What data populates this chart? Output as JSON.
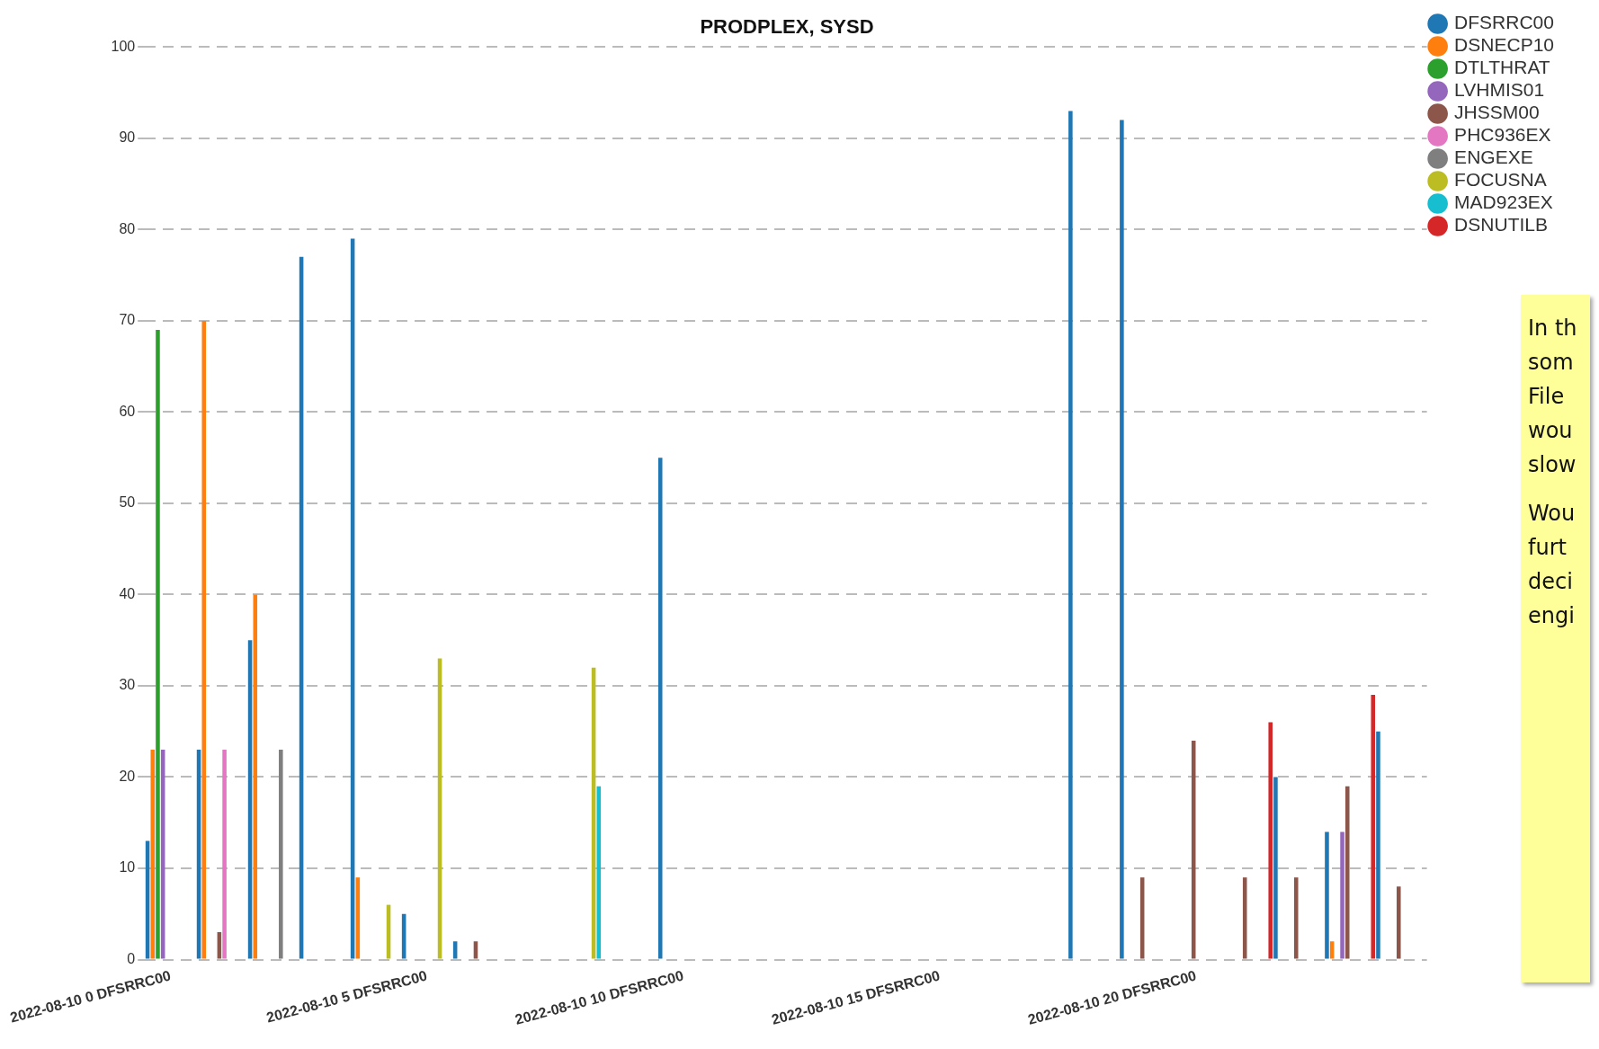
{
  "chart_data": {
    "type": "bar",
    "title": "PRODPLEX, SYSD",
    "categories": [
      "2022-08-10 0 DFSRRC00",
      null,
      null,
      null,
      null,
      "2022-08-10 5 DFSRRC00",
      null,
      null,
      null,
      null,
      "2022-08-10 10 DFSRRC00",
      null,
      null,
      null,
      null,
      "2022-08-10 15 DFSRRC00",
      null,
      null,
      null,
      null,
      "2022-08-10 20 DFSRRC00",
      null,
      null,
      null,
      null
    ],
    "series": [
      {
        "name": "DFSRRC00",
        "color": "#1f77b4",
        "values": [
          13,
          23,
          35,
          77,
          79,
          5,
          2,
          null,
          null,
          null,
          55,
          null,
          null,
          null,
          null,
          null,
          null,
          null,
          93,
          92,
          null,
          null,
          20,
          14,
          25
        ]
      },
      {
        "name": "DSNECP10",
        "color": "#ff7f0e",
        "values": [
          23,
          70,
          40,
          null,
          9,
          null,
          null,
          null,
          null,
          null,
          null,
          null,
          null,
          null,
          null,
          null,
          null,
          null,
          null,
          null,
          null,
          null,
          null,
          2,
          null
        ]
      },
      {
        "name": "DTLTHRAT",
        "color": "#2ca02c",
        "values": [
          69,
          null,
          null,
          null,
          null,
          null,
          null,
          null,
          null,
          null,
          null,
          null,
          null,
          null,
          null,
          null,
          null,
          null,
          null,
          null,
          null,
          null,
          null,
          null,
          null
        ]
      },
      {
        "name": "LVHMIS01",
        "color": "#9467bd",
        "values": [
          23,
          null,
          null,
          null,
          null,
          null,
          null,
          null,
          null,
          null,
          null,
          null,
          null,
          null,
          null,
          null,
          null,
          null,
          null,
          null,
          null,
          null,
          null,
          14,
          null
        ]
      },
      {
        "name": "JHSSM00",
        "color": "#8c564b",
        "values": [
          null,
          3,
          null,
          null,
          null,
          null,
          2,
          null,
          null,
          null,
          null,
          null,
          null,
          null,
          null,
          null,
          null,
          null,
          null,
          9,
          24,
          9,
          9,
          19,
          8
        ]
      },
      {
        "name": "PHC936EX",
        "color": "#e377c2",
        "values": [
          null,
          23,
          null,
          null,
          null,
          null,
          null,
          null,
          null,
          null,
          null,
          null,
          null,
          null,
          null,
          null,
          null,
          null,
          null,
          null,
          null,
          null,
          null,
          null,
          null
        ]
      },
      {
        "name": "ENGEXE",
        "color": "#7f7f7f",
        "values": [
          null,
          null,
          23,
          null,
          null,
          null,
          null,
          null,
          null,
          null,
          null,
          null,
          null,
          null,
          null,
          null,
          null,
          null,
          null,
          null,
          null,
          null,
          null,
          null,
          null
        ]
      },
      {
        "name": "FOCUSNA",
        "color": "#bcbd22",
        "values": [
          null,
          null,
          null,
          null,
          6,
          33,
          null,
          null,
          32,
          null,
          null,
          null,
          null,
          null,
          null,
          null,
          null,
          null,
          null,
          null,
          null,
          null,
          null,
          null,
          null
        ]
      },
      {
        "name": "MAD923EX",
        "color": "#17becf",
        "values": [
          null,
          null,
          null,
          null,
          null,
          null,
          null,
          null,
          19,
          null,
          null,
          null,
          null,
          null,
          null,
          null,
          null,
          null,
          null,
          null,
          null,
          null,
          null,
          null,
          null
        ]
      },
      {
        "name": "DSNUTILB",
        "color": "#d62728",
        "values": [
          null,
          null,
          null,
          null,
          null,
          null,
          null,
          null,
          null,
          null,
          null,
          null,
          null,
          null,
          null,
          null,
          null,
          null,
          null,
          null,
          null,
          26,
          null,
          29,
          null
        ]
      }
    ],
    "ylim": [
      0,
      100
    ],
    "yticks": [
      0,
      10,
      20,
      30,
      40,
      50,
      60,
      70,
      80,
      90,
      100
    ],
    "grid": "y",
    "legend": "top right",
    "annotations": [
      "In th\nsom\nFile\nwou\nslow",
      "Wou\nfurt\ndeci\nengi"
    ]
  }
}
